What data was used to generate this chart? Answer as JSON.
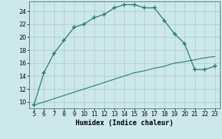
{
  "xlabel": "Humidex (Indice chaleur)",
  "x": [
    5,
    6,
    7,
    8,
    9,
    10,
    11,
    12,
    13,
    14,
    15,
    16,
    17,
    18,
    19,
    20,
    21,
    22,
    23
  ],
  "y_main": [
    9.5,
    14.5,
    17.5,
    19.5,
    21.5,
    22.0,
    23.0,
    23.5,
    24.5,
    25.0,
    25.0,
    24.5,
    24.5,
    22.5,
    20.5,
    19.0,
    15.0,
    15.0,
    15.5
  ],
  "y_ref": [
    9.5,
    10.0,
    10.5,
    11.0,
    11.5,
    12.0,
    12.5,
    13.0,
    13.5,
    14.0,
    14.5,
    14.8,
    15.2,
    15.5,
    16.0,
    16.2,
    16.5,
    16.8,
    17.0
  ],
  "line_color": "#2e7d6e",
  "bg_color": "#cce8ec",
  "grid_color_minor": "#b8d8dc",
  "grid_color_major": "#b0c8cc",
  "ylim": [
    9.0,
    25.5
  ],
  "yticks": [
    10,
    12,
    14,
    16,
    18,
    20,
    22,
    24
  ],
  "xlim": [
    4.5,
    23.5
  ],
  "xticks": [
    5,
    6,
    7,
    8,
    9,
    10,
    11,
    12,
    13,
    14,
    15,
    16,
    17,
    18,
    19,
    20,
    21,
    22,
    23
  ]
}
